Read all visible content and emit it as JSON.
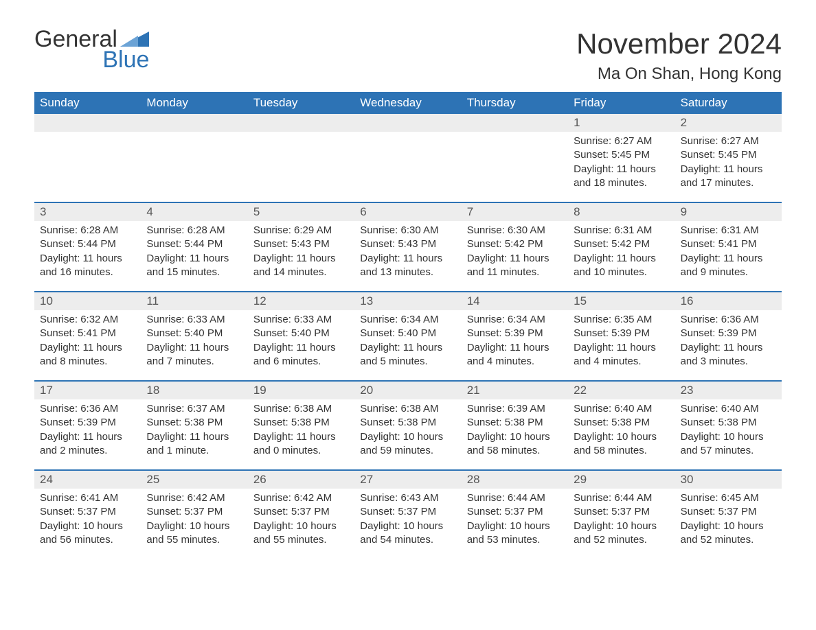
{
  "logo": {
    "general": "General",
    "blue": "Blue",
    "flag_color": "#2d73b5"
  },
  "title": "November 2024",
  "location": "Ma On Shan, Hong Kong",
  "colors": {
    "header_bg": "#2d73b5",
    "header_text": "#ffffff",
    "date_bg": "#ededed",
    "date_text": "#555555",
    "body_text": "#333333",
    "week_divider": "#2d73b5",
    "page_bg": "#ffffff"
  },
  "day_names": [
    "Sunday",
    "Monday",
    "Tuesday",
    "Wednesday",
    "Thursday",
    "Friday",
    "Saturday"
  ],
  "weeks": [
    [
      {
        "date": "",
        "lines": []
      },
      {
        "date": "",
        "lines": []
      },
      {
        "date": "",
        "lines": []
      },
      {
        "date": "",
        "lines": []
      },
      {
        "date": "",
        "lines": []
      },
      {
        "date": "1",
        "lines": [
          "Sunrise: 6:27 AM",
          "Sunset: 5:45 PM",
          "Daylight: 11 hours and 18 minutes."
        ]
      },
      {
        "date": "2",
        "lines": [
          "Sunrise: 6:27 AM",
          "Sunset: 5:45 PM",
          "Daylight: 11 hours and 17 minutes."
        ]
      }
    ],
    [
      {
        "date": "3",
        "lines": [
          "Sunrise: 6:28 AM",
          "Sunset: 5:44 PM",
          "Daylight: 11 hours and 16 minutes."
        ]
      },
      {
        "date": "4",
        "lines": [
          "Sunrise: 6:28 AM",
          "Sunset: 5:44 PM",
          "Daylight: 11 hours and 15 minutes."
        ]
      },
      {
        "date": "5",
        "lines": [
          "Sunrise: 6:29 AM",
          "Sunset: 5:43 PM",
          "Daylight: 11 hours and 14 minutes."
        ]
      },
      {
        "date": "6",
        "lines": [
          "Sunrise: 6:30 AM",
          "Sunset: 5:43 PM",
          "Daylight: 11 hours and 13 minutes."
        ]
      },
      {
        "date": "7",
        "lines": [
          "Sunrise: 6:30 AM",
          "Sunset: 5:42 PM",
          "Daylight: 11 hours and 11 minutes."
        ]
      },
      {
        "date": "8",
        "lines": [
          "Sunrise: 6:31 AM",
          "Sunset: 5:42 PM",
          "Daylight: 11 hours and 10 minutes."
        ]
      },
      {
        "date": "9",
        "lines": [
          "Sunrise: 6:31 AM",
          "Sunset: 5:41 PM",
          "Daylight: 11 hours and 9 minutes."
        ]
      }
    ],
    [
      {
        "date": "10",
        "lines": [
          "Sunrise: 6:32 AM",
          "Sunset: 5:41 PM",
          "Daylight: 11 hours and 8 minutes."
        ]
      },
      {
        "date": "11",
        "lines": [
          "Sunrise: 6:33 AM",
          "Sunset: 5:40 PM",
          "Daylight: 11 hours and 7 minutes."
        ]
      },
      {
        "date": "12",
        "lines": [
          "Sunrise: 6:33 AM",
          "Sunset: 5:40 PM",
          "Daylight: 11 hours and 6 minutes."
        ]
      },
      {
        "date": "13",
        "lines": [
          "Sunrise: 6:34 AM",
          "Sunset: 5:40 PM",
          "Daylight: 11 hours and 5 minutes."
        ]
      },
      {
        "date": "14",
        "lines": [
          "Sunrise: 6:34 AM",
          "Sunset: 5:39 PM",
          "Daylight: 11 hours and 4 minutes."
        ]
      },
      {
        "date": "15",
        "lines": [
          "Sunrise: 6:35 AM",
          "Sunset: 5:39 PM",
          "Daylight: 11 hours and 4 minutes."
        ]
      },
      {
        "date": "16",
        "lines": [
          "Sunrise: 6:36 AM",
          "Sunset: 5:39 PM",
          "Daylight: 11 hours and 3 minutes."
        ]
      }
    ],
    [
      {
        "date": "17",
        "lines": [
          "Sunrise: 6:36 AM",
          "Sunset: 5:39 PM",
          "Daylight: 11 hours and 2 minutes."
        ]
      },
      {
        "date": "18",
        "lines": [
          "Sunrise: 6:37 AM",
          "Sunset: 5:38 PM",
          "Daylight: 11 hours and 1 minute."
        ]
      },
      {
        "date": "19",
        "lines": [
          "Sunrise: 6:38 AM",
          "Sunset: 5:38 PM",
          "Daylight: 11 hours and 0 minutes."
        ]
      },
      {
        "date": "20",
        "lines": [
          "Sunrise: 6:38 AM",
          "Sunset: 5:38 PM",
          "Daylight: 10 hours and 59 minutes."
        ]
      },
      {
        "date": "21",
        "lines": [
          "Sunrise: 6:39 AM",
          "Sunset: 5:38 PM",
          "Daylight: 10 hours and 58 minutes."
        ]
      },
      {
        "date": "22",
        "lines": [
          "Sunrise: 6:40 AM",
          "Sunset: 5:38 PM",
          "Daylight: 10 hours and 58 minutes."
        ]
      },
      {
        "date": "23",
        "lines": [
          "Sunrise: 6:40 AM",
          "Sunset: 5:38 PM",
          "Daylight: 10 hours and 57 minutes."
        ]
      }
    ],
    [
      {
        "date": "24",
        "lines": [
          "Sunrise: 6:41 AM",
          "Sunset: 5:37 PM",
          "Daylight: 10 hours and 56 minutes."
        ]
      },
      {
        "date": "25",
        "lines": [
          "Sunrise: 6:42 AM",
          "Sunset: 5:37 PM",
          "Daylight: 10 hours and 55 minutes."
        ]
      },
      {
        "date": "26",
        "lines": [
          "Sunrise: 6:42 AM",
          "Sunset: 5:37 PM",
          "Daylight: 10 hours and 55 minutes."
        ]
      },
      {
        "date": "27",
        "lines": [
          "Sunrise: 6:43 AM",
          "Sunset: 5:37 PM",
          "Daylight: 10 hours and 54 minutes."
        ]
      },
      {
        "date": "28",
        "lines": [
          "Sunrise: 6:44 AM",
          "Sunset: 5:37 PM",
          "Daylight: 10 hours and 53 minutes."
        ]
      },
      {
        "date": "29",
        "lines": [
          "Sunrise: 6:44 AM",
          "Sunset: 5:37 PM",
          "Daylight: 10 hours and 52 minutes."
        ]
      },
      {
        "date": "30",
        "lines": [
          "Sunrise: 6:45 AM",
          "Sunset: 5:37 PM",
          "Daylight: 10 hours and 52 minutes."
        ]
      }
    ]
  ]
}
